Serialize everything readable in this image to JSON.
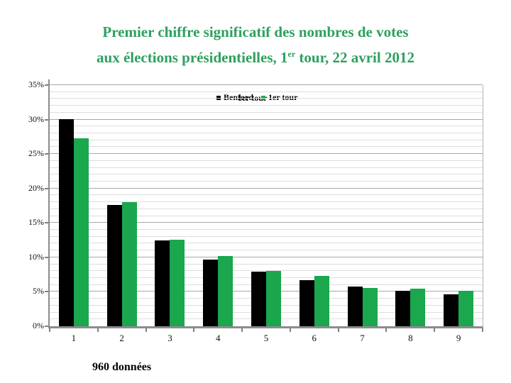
{
  "slide": {
    "title_line1": "Premier chiffre significatif des nombres de votes",
    "title_line2_prefix": "aux élections présidentielles, 1",
    "title_line2_sup": "er",
    "title_line2_suffix": " tour, 22 avril 2012",
    "footer": "960 données"
  },
  "colors": {
    "title_green": "#2EA05F",
    "benford_black": "#000000",
    "tour_green": "#1AA74D",
    "axis_gray": "#8C8C8C",
    "major_grid": "#A8A8A8",
    "minor_grid": "#DDDDDD"
  },
  "legend": {
    "entries": [
      {
        "label": "Benford",
        "color": "#000000"
      },
      {
        "label": "1er tour",
        "color": "#1AA74D"
      }
    ]
  },
  "chart_data": {
    "type": "bar",
    "title": "Premier chiffre significatif des nombres de votes aux élections présidentielles, 1er tour, 22 avril 2012",
    "categories": [
      "1",
      "2",
      "3",
      "4",
      "5",
      "6",
      "7",
      "8",
      "9"
    ],
    "series": [
      {
        "name": "Benford",
        "color": "#000000",
        "values": [
          30.1,
          17.6,
          12.5,
          9.7,
          7.9,
          6.7,
          5.8,
          5.1,
          4.6
        ]
      },
      {
        "name": "1er tour",
        "color": "#1AA74D",
        "values": [
          27.3,
          18.0,
          12.6,
          10.2,
          8.0,
          7.3,
          5.6,
          5.5,
          5.2
        ]
      }
    ],
    "xlabel": "",
    "ylabel": "",
    "ylim": [
      0,
      35
    ],
    "y_major_step": 5,
    "y_minor_step": 1,
    "y_tick_labels": [
      "0%",
      "5%",
      "10%",
      "15%",
      "20%",
      "25%",
      "30%",
      "35%"
    ],
    "grid": true,
    "legend_position": "top-center",
    "annotation": "960 données"
  }
}
